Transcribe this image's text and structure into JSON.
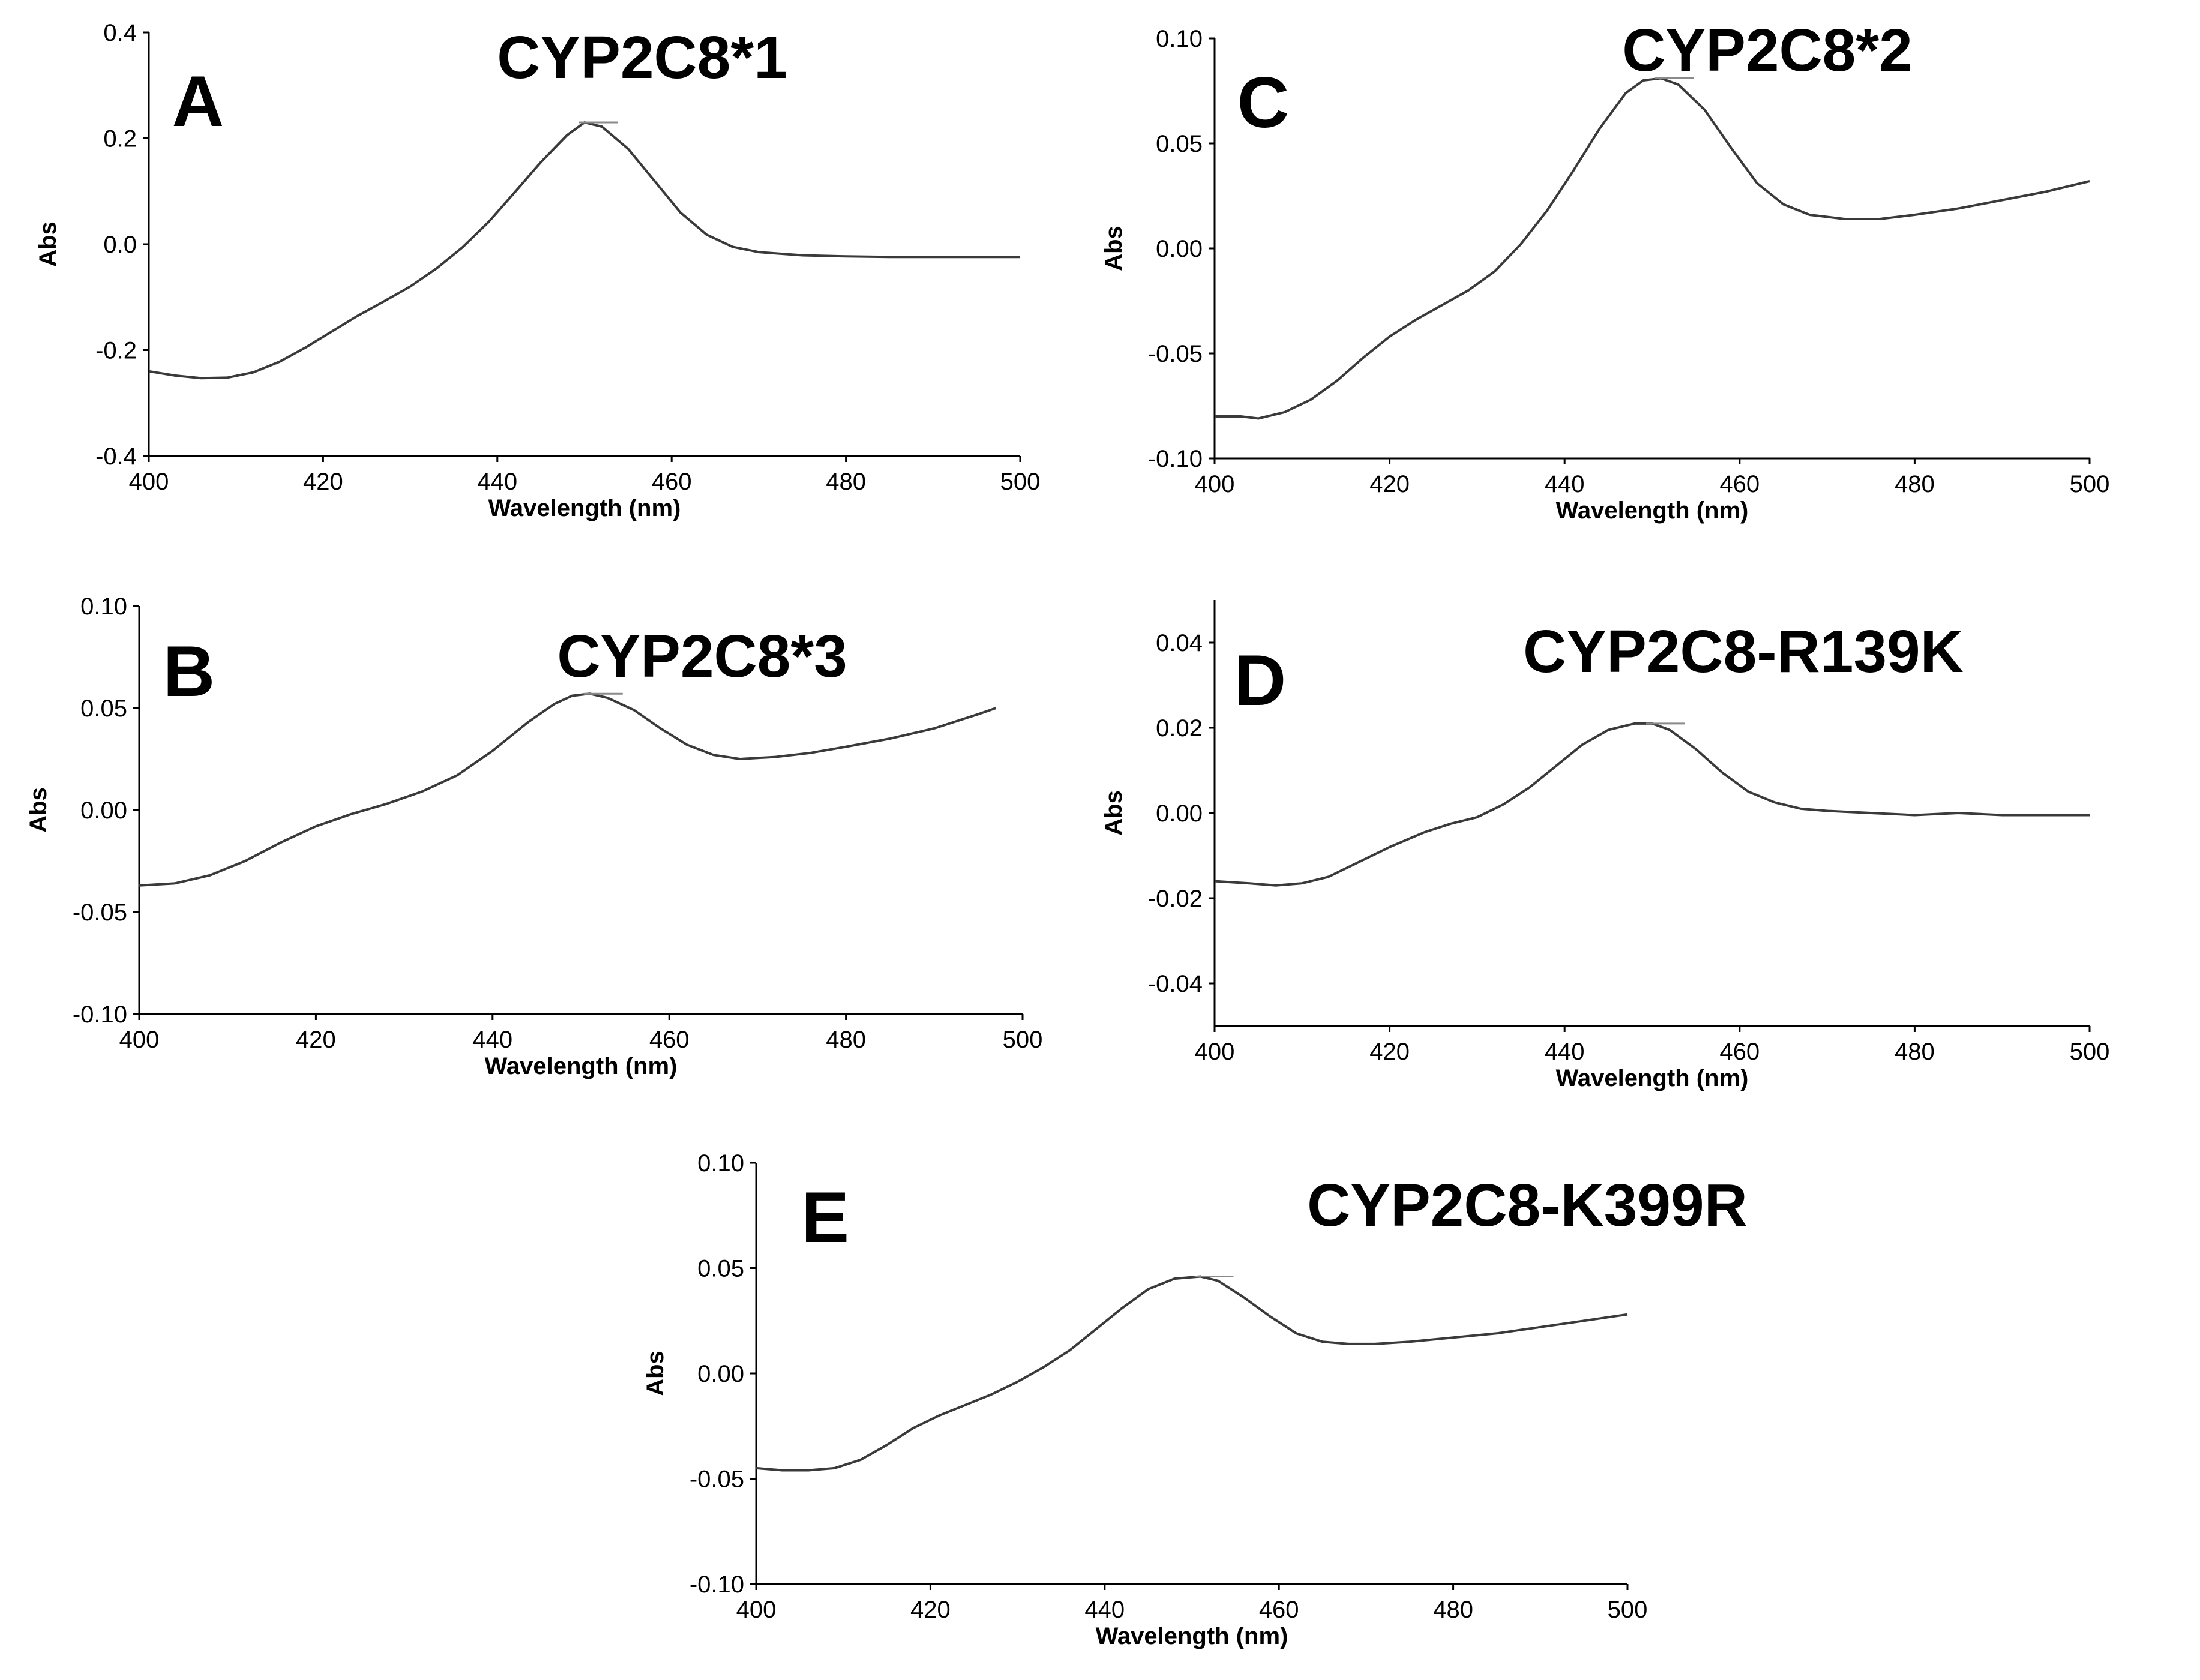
{
  "chart_data": [
    {
      "id": "A",
      "type": "line",
      "panel_letter": "A",
      "title": "CYP2C8*1",
      "xlabel": "Wavelength (nm)",
      "ylabel": "Abs",
      "xlim": [
        400,
        500
      ],
      "ylim": [
        -0.4,
        0.4
      ],
      "xticks": [
        400,
        420,
        440,
        460,
        480,
        500
      ],
      "xtick_labels": [
        "400",
        "420",
        "440",
        "460",
        "480",
        "500"
      ],
      "yticks": [
        -0.4,
        -0.2,
        0.0,
        0.2,
        0.4
      ],
      "ytick_labels": [
        "-0.4",
        "-0.2",
        "0.0",
        "0.2",
        "0.4"
      ],
      "peak": {
        "x": 450,
        "y": 0.23
      },
      "series": [
        {
          "name": "CYP2C8*1",
          "x": [
            400,
            403,
            406,
            409,
            412,
            415,
            418,
            421,
            424,
            427,
            430,
            433,
            436,
            439,
            442,
            445,
            448,
            450,
            452,
            455,
            458,
            461,
            464,
            467,
            470,
            475,
            480,
            485,
            490,
            495,
            500
          ],
          "y": [
            -0.24,
            -0.248,
            -0.253,
            -0.252,
            -0.242,
            -0.222,
            -0.195,
            -0.165,
            -0.135,
            -0.108,
            -0.08,
            -0.046,
            -0.006,
            0.042,
            0.098,
            0.155,
            0.206,
            0.23,
            0.222,
            0.18,
            0.12,
            0.06,
            0.018,
            -0.005,
            -0.015,
            -0.021,
            -0.023,
            -0.024,
            -0.024,
            -0.024,
            -0.024
          ]
        }
      ]
    },
    {
      "id": "B",
      "type": "line",
      "panel_letter": "B",
      "title": "CYP2C8*3",
      "xlabel": "Wavelength (nm)",
      "ylabel": "Abs",
      "xlim": [
        400,
        500
      ],
      "ylim": [
        -0.1,
        0.1
      ],
      "xticks": [
        400,
        420,
        440,
        460,
        480,
        500
      ],
      "xtick_labels": [
        "400",
        "420",
        "440",
        "460",
        "480",
        "500"
      ],
      "yticks": [
        -0.1,
        -0.05,
        0.0,
        0.05,
        0.1
      ],
      "ytick_labels": [
        "-0.10",
        "-0.05",
        "0.00",
        "0.05",
        "0.10"
      ],
      "peak": {
        "x": 451,
        "y": 0.057
      },
      "series": [
        {
          "name": "CYP2C8*3",
          "x": [
            400,
            404,
            408,
            412,
            416,
            420,
            424,
            428,
            432,
            436,
            440,
            444,
            447,
            449,
            451,
            453,
            456,
            459,
            462,
            465,
            468,
            472,
            476,
            480,
            485,
            490,
            495,
            497
          ],
          "y": [
            -0.037,
            -0.036,
            -0.032,
            -0.025,
            -0.016,
            -0.008,
            -0.002,
            0.003,
            0.009,
            0.017,
            0.029,
            0.043,
            0.052,
            0.056,
            0.057,
            0.055,
            0.049,
            0.04,
            0.032,
            0.027,
            0.025,
            0.026,
            0.028,
            0.031,
            0.035,
            0.04,
            0.047,
            0.05
          ]
        }
      ]
    },
    {
      "id": "C",
      "type": "line",
      "panel_letter": "C",
      "title": "CYP2C8*2",
      "xlabel": "Wavelength (nm)",
      "ylabel": "Abs",
      "xlim": [
        400,
        500
      ],
      "ylim": [
        -0.1,
        0.1
      ],
      "xticks": [
        400,
        420,
        440,
        460,
        480,
        500
      ],
      "xtick_labels": [
        "400",
        "420",
        "440",
        "460",
        "480",
        "500"
      ],
      "yticks": [
        -0.1,
        -0.05,
        0.0,
        0.05,
        0.1
      ],
      "ytick_labels": [
        "-0.10",
        "-0.05",
        "0.00",
        "0.05",
        "0.10"
      ],
      "peak": {
        "x": 451,
        "y": 0.081
      },
      "series": [
        {
          "name": "CYP2C8*2",
          "x": [
            400,
            403,
            405,
            408,
            411,
            414,
            417,
            420,
            423,
            426,
            429,
            432,
            435,
            438,
            441,
            444,
            447,
            449,
            451,
            453,
            456,
            459,
            462,
            465,
            468,
            472,
            476,
            480,
            485,
            490,
            495,
            500
          ],
          "y": [
            -0.08,
            -0.08,
            -0.081,
            -0.078,
            -0.072,
            -0.063,
            -0.052,
            -0.042,
            -0.034,
            -0.027,
            -0.02,
            -0.011,
            0.002,
            0.018,
            0.037,
            0.057,
            0.074,
            0.08,
            0.081,
            0.078,
            0.066,
            0.048,
            0.031,
            0.021,
            0.016,
            0.014,
            0.014,
            0.016,
            0.019,
            0.023,
            0.027,
            0.032
          ]
        }
      ]
    },
    {
      "id": "D",
      "type": "line",
      "panel_letter": "D",
      "title": "CYP2C8-R139K",
      "xlabel": "Wavelength (nm)",
      "ylabel": "Abs",
      "xlim": [
        400,
        500
      ],
      "ylim": [
        -0.05,
        0.05
      ],
      "xticks": [
        400,
        420,
        440,
        460,
        480,
        500
      ],
      "xtick_labels": [
        "400",
        "420",
        "440",
        "460",
        "480",
        "500"
      ],
      "yticks": [
        -0.04,
        -0.02,
        0.0,
        0.02,
        0.04
      ],
      "ytick_labels": [
        "-0.04",
        "-0.02",
        "0.00",
        "0.02",
        "0.04"
      ],
      "peak": {
        "x": 450,
        "y": 0.021
      },
      "series": [
        {
          "name": "CYP2C8-R139K",
          "x": [
            400,
            404,
            407,
            410,
            413,
            416,
            420,
            424,
            427,
            430,
            433,
            436,
            439,
            442,
            445,
            448,
            450,
            452,
            455,
            458,
            461,
            464,
            467,
            470,
            475,
            480,
            485,
            490,
            495,
            500
          ],
          "y": [
            -0.016,
            -0.0165,
            -0.017,
            -0.0165,
            -0.015,
            -0.012,
            -0.008,
            -0.0045,
            -0.0025,
            -0.001,
            0.002,
            0.006,
            0.011,
            0.016,
            0.0195,
            0.021,
            0.021,
            0.0195,
            0.015,
            0.0095,
            0.005,
            0.0025,
            0.001,
            0.0005,
            0.0,
            -0.0005,
            0.0,
            -0.0005,
            -0.0005,
            -0.0005
          ]
        }
      ]
    },
    {
      "id": "E",
      "type": "line",
      "panel_letter": "E",
      "title": "CYP2C8-K399R",
      "xlabel": "Wavelength (nm)",
      "ylabel": "Abs",
      "xlim": [
        400,
        500
      ],
      "ylim": [
        -0.1,
        0.1
      ],
      "xticks": [
        400,
        420,
        440,
        460,
        480,
        500
      ],
      "xtick_labels": [
        "400",
        "420",
        "440",
        "460",
        "480",
        "500"
      ],
      "yticks": [
        -0.1,
        -0.05,
        0.0,
        0.05,
        0.1
      ],
      "ytick_labels": [
        "-0.10",
        "-0.05",
        "0.00",
        "0.05",
        "0.10"
      ],
      "peak": {
        "x": 451,
        "y": 0.046
      },
      "series": [
        {
          "name": "CYP2C8-K399R",
          "x": [
            400,
            403,
            406,
            409,
            412,
            415,
            418,
            421,
            424,
            427,
            430,
            433,
            436,
            439,
            442,
            445,
            448,
            451,
            453,
            456,
            459,
            462,
            465,
            468,
            471,
            475,
            480,
            485,
            490,
            495,
            500
          ],
          "y": [
            -0.045,
            -0.046,
            -0.046,
            -0.045,
            -0.041,
            -0.034,
            -0.026,
            -0.02,
            -0.015,
            -0.01,
            -0.004,
            0.003,
            0.011,
            0.021,
            0.031,
            0.04,
            0.045,
            0.046,
            0.044,
            0.036,
            0.027,
            0.019,
            0.015,
            0.014,
            0.014,
            0.015,
            0.017,
            0.019,
            0.022,
            0.025,
            0.028
          ]
        }
      ]
    }
  ]
}
